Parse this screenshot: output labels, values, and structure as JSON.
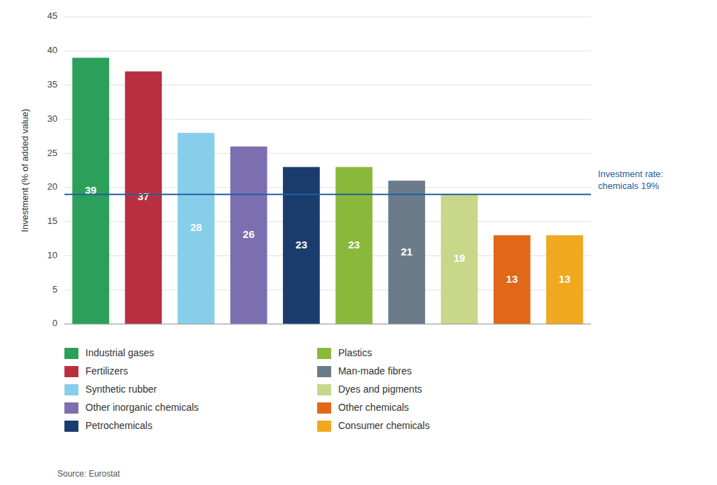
{
  "chart_data": {
    "type": "bar",
    "categories": [
      "Industrial gases",
      "Fertilizers",
      "Synthetic rubber",
      "Other inorganic chemicals",
      "Petrochemicals",
      "Plastics",
      "Man-made fibres",
      "Dyes and pigments",
      "Other chemicals",
      "Consumer chemicals"
    ],
    "values": [
      39,
      37,
      28,
      26,
      23,
      23,
      21,
      19,
      13,
      13
    ],
    "colors": [
      "#2ca05a",
      "#b83040",
      "#87ceeb",
      "#7b6faf",
      "#1a3d6e",
      "#8ab83a",
      "#6b7b8a",
      "#c8d88a",
      "#e06818",
      "#f0a820"
    ],
    "y_label": "Investment (% of added value)",
    "ylim": [
      0,
      45
    ],
    "yticks": [
      0,
      5,
      10,
      15,
      20,
      25,
      30,
      35,
      40,
      45
    ],
    "grid": true,
    "data_labels": true,
    "tick_labels": "y",
    "legend": "bottom",
    "annotations": [
      {
        "text": "Investment rate:\nchemicals 19%",
        "y": 19,
        "color": "#2060a0"
      }
    ],
    "source": "Source: Eurostat"
  }
}
